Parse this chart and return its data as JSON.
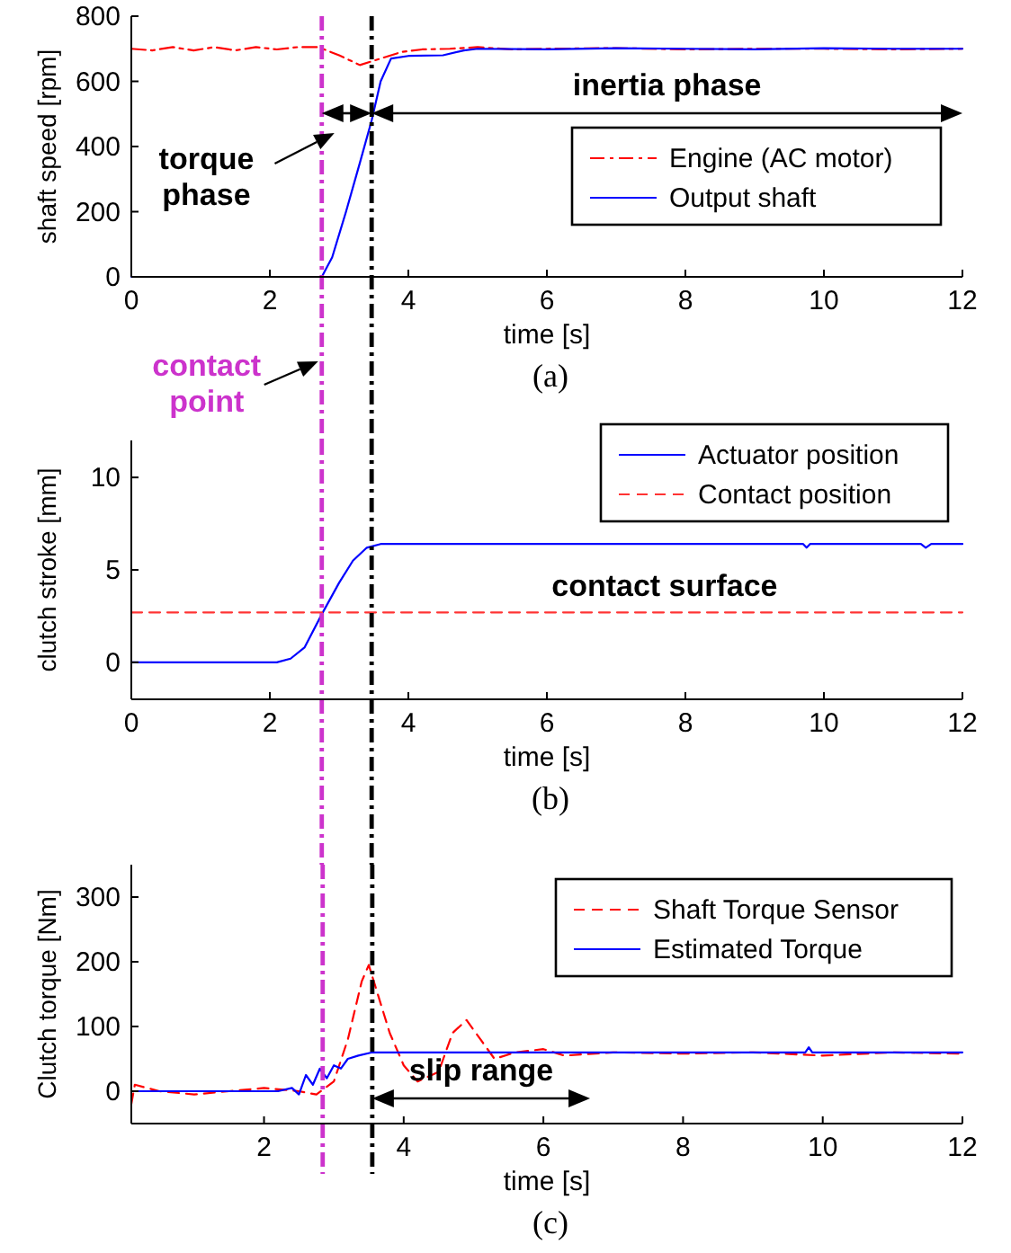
{
  "chart_data": [
    {
      "type": "line",
      "xlabel": "time [s]",
      "ylabel": "shaft speed [rpm]",
      "xlim": [
        0,
        12
      ],
      "xticks": [
        0,
        2,
        4,
        6,
        8,
        10,
        12
      ],
      "ylim": [
        0,
        800
      ],
      "yticks": [
        0,
        200,
        400,
        600,
        800
      ],
      "legend": "right",
      "series": [
        {
          "name": "Engine (AC motor)",
          "color": "#ff0000",
          "line_style": "dashdot",
          "x": [
            0,
            0.3,
            0.6,
            0.9,
            1.2,
            1.5,
            1.8,
            2.1,
            2.4,
            2.7,
            3.0,
            3.3,
            3.6,
            3.9,
            4.2,
            4.6,
            5.0,
            5.5,
            6.0,
            7.0,
            8.0,
            9.0,
            10.0,
            11.0,
            12.0
          ],
          "values": [
            700,
            695,
            705,
            695,
            705,
            695,
            705,
            698,
            705,
            705,
            680,
            650,
            670,
            690,
            698,
            700,
            705,
            698,
            700,
            702,
            698,
            700,
            700,
            698,
            700
          ]
        },
        {
          "name": "Output shaft",
          "color": "#0000ff",
          "line_style": "solid",
          "x": [
            0,
            2.75,
            2.9,
            3.1,
            3.3,
            3.47,
            3.6,
            3.75,
            4.0,
            4.5,
            4.8,
            5.0,
            6.0,
            7.0,
            8.0,
            9.0,
            10.0,
            11.0,
            12.0
          ],
          "values": [
            0,
            0,
            60,
            200,
            350,
            480,
            600,
            670,
            678,
            680,
            695,
            700,
            698,
            702,
            700,
            698,
            702,
            700,
            700
          ]
        }
      ],
      "ref_lines": [
        {
          "axis": "x",
          "value": 2.75,
          "color": "#cc33cc",
          "line_style": "dashdot"
        },
        {
          "axis": "x",
          "value": 3.47,
          "color": "#000000",
          "line_style": "dashdot"
        }
      ],
      "annotations": [
        "torque phase",
        "inertia phase",
        "(a)"
      ]
    },
    {
      "type": "line",
      "xlabel": "time [s]",
      "ylabel": "clutch stroke [mm]",
      "xlim": [
        0,
        12
      ],
      "xticks": [
        0,
        2,
        4,
        6,
        8,
        10,
        12
      ],
      "ylim": [
        -2,
        12
      ],
      "yticks": [
        0,
        5,
        10
      ],
      "legend": "top right",
      "series": [
        {
          "name": "Actuator position",
          "color": "#0000ff",
          "line_style": "solid",
          "x": [
            0,
            2.1,
            2.3,
            2.5,
            2.75,
            3.0,
            3.2,
            3.4,
            3.6,
            9.7,
            9.75,
            9.8,
            11.4,
            11.47,
            11.55,
            12
          ],
          "values": [
            0,
            0,
            0.2,
            0.8,
            2.6,
            4.3,
            5.5,
            6.2,
            6.4,
            6.4,
            6.2,
            6.4,
            6.4,
            6.2,
            6.4,
            6.4
          ]
        },
        {
          "name": "Contact position",
          "color": "#ff3333",
          "line_style": "dashed",
          "x": [
            0,
            12
          ],
          "values": [
            2.7,
            2.7
          ]
        }
      ],
      "ref_lines": [
        {
          "axis": "x",
          "value": 2.75,
          "color": "#cc33cc",
          "line_style": "dashdot"
        },
        {
          "axis": "x",
          "value": 3.47,
          "color": "#000000",
          "line_style": "dashdot"
        }
      ],
      "annotations": [
        "contact point",
        {
          "text": "contact surface",
          "x": 7.7,
          "y": 2.7
        },
        "(b)"
      ]
    },
    {
      "type": "line",
      "xlabel": "time [s]",
      "ylabel": "Clutch torque [Nm]",
      "xlim": [
        0.1,
        12
      ],
      "xticks": [
        2,
        4,
        6,
        8,
        10,
        12
      ],
      "ylim": [
        -50,
        350
      ],
      "yticks": [
        0,
        100,
        200,
        300
      ],
      "legend": "top right",
      "series": [
        {
          "name": "Shaft Torque Sensor",
          "color": "#ff0000",
          "line_style": "dashed",
          "x": [
            0.1,
            0.15,
            0.5,
            1.0,
            1.5,
            2.0,
            2.5,
            2.75,
            3.0,
            3.2,
            3.4,
            3.5,
            3.6,
            3.8,
            4.0,
            4.2,
            4.5,
            4.7,
            4.9,
            5.1,
            5.3,
            5.6,
            6.0,
            6.3,
            7.0,
            8.0,
            9.0,
            10.0,
            11.0,
            12.0
          ],
          "values": [
            -20,
            10,
            0,
            -5,
            0,
            5,
            0,
            -5,
            15,
            80,
            170,
            195,
            160,
            90,
            40,
            15,
            30,
            90,
            110,
            80,
            50,
            60,
            65,
            55,
            60,
            58,
            60,
            55,
            60,
            58
          ]
        },
        {
          "name": "Estimated Torque",
          "color": "#0000ff",
          "line_style": "solid",
          "x": [
            0.1,
            2.2,
            2.4,
            2.5,
            2.6,
            2.7,
            2.8,
            2.9,
            3.0,
            3.1,
            3.2,
            3.35,
            3.55,
            5.0,
            8.0,
            9.75,
            9.8,
            9.85,
            12.0
          ],
          "values": [
            0,
            0,
            5,
            -5,
            25,
            10,
            35,
            20,
            40,
            35,
            50,
            55,
            60,
            60,
            60,
            60,
            68,
            60,
            60
          ]
        }
      ],
      "ref_lines": [
        {
          "axis": "x",
          "value": 2.84,
          "color": "#cc33cc",
          "line_style": "dashdot"
        },
        {
          "axis": "x",
          "value": 3.55,
          "color": "#000000",
          "line_style": "dashdot"
        }
      ],
      "annotations": [
        "slip range",
        "(c)"
      ]
    }
  ]
}
